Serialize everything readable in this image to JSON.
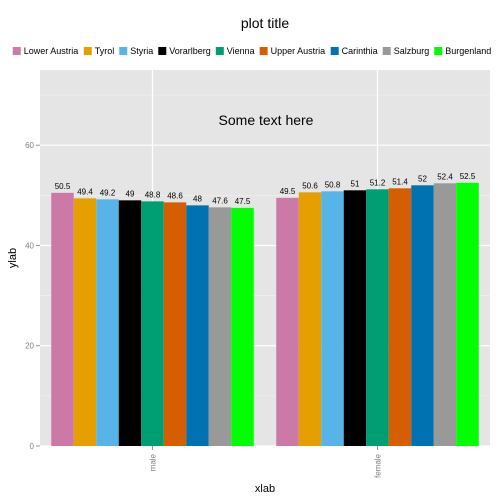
{
  "chart_data": {
    "type": "bar",
    "title": "plot title",
    "xlabel": "xlab",
    "ylabel": "ylab",
    "categories": [
      "male",
      "female"
    ],
    "ylim": [
      0,
      75
    ],
    "yticks": [
      0,
      20,
      40,
      60
    ],
    "grid": true,
    "legend_position": "top",
    "annotation": "Some text here",
    "series": [
      {
        "name": "Lower Austria",
        "color": "#CC79A7",
        "values": [
          50.5,
          49.5
        ]
      },
      {
        "name": "Tyrol",
        "color": "#E69F00",
        "values": [
          49.4,
          50.6
        ]
      },
      {
        "name": "Styria",
        "color": "#56B4E9",
        "values": [
          49.2,
          50.8
        ]
      },
      {
        "name": "Vorarlberg",
        "color": "#000000",
        "values": [
          49,
          51
        ]
      },
      {
        "name": "Vienna",
        "color": "#009E73",
        "values": [
          48.8,
          51.2
        ]
      },
      {
        "name": "Upper Austria",
        "color": "#D55E00",
        "values": [
          48.6,
          51.4
        ]
      },
      {
        "name": "Carinthia",
        "color": "#0072B2",
        "values": [
          48,
          52
        ]
      },
      {
        "name": "Salzburg",
        "color": "#999999",
        "values": [
          47.6,
          52.4
        ]
      },
      {
        "name": "Burgenland",
        "color": "#00FF00",
        "values": [
          47.5,
          52.5
        ]
      }
    ]
  }
}
